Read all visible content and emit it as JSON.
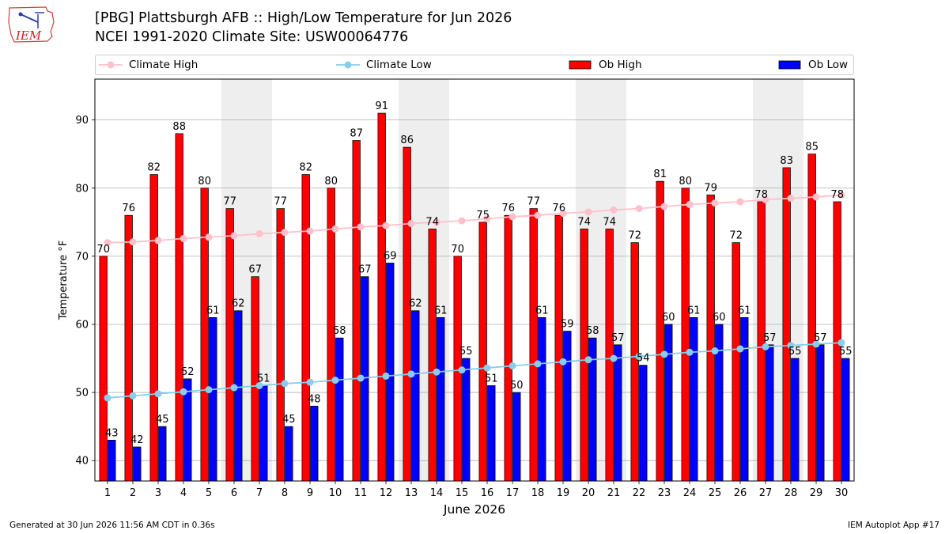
{
  "header": {
    "logo_text": "IEM",
    "title": "[PBG] Plattsburgh AFB :: High/Low Temperature for Jun 2026",
    "subtitle": "NCEI 1991-2020 Climate Site: USW00064776"
  },
  "footer": {
    "generated": "Generated at 30 Jun 2026 11:56 AM CDT in 0.36s",
    "app": "IEM Autoplot App #17"
  },
  "colors": {
    "climate_high": "#ffc0cb",
    "climate_low": "#87ceeb",
    "ob_high": "#ff0000",
    "ob_low": "#0000ff",
    "weekend_band": "#eeeeee"
  },
  "chart_data": {
    "type": "bar",
    "xlabel": "June 2026",
    "ylabel": "Temperature °F",
    "ylim": [
      37,
      96
    ],
    "yticks": [
      40,
      50,
      60,
      70,
      80,
      90
    ],
    "grid": "horizontal",
    "legend_placement": "top",
    "categories": [
      "1",
      "2",
      "3",
      "4",
      "5",
      "6",
      "7",
      "8",
      "9",
      "10",
      "11",
      "12",
      "13",
      "14",
      "15",
      "16",
      "17",
      "18",
      "19",
      "20",
      "21",
      "22",
      "23",
      "24",
      "25",
      "26",
      "27",
      "28",
      "29",
      "30"
    ],
    "shaded_days": [
      6,
      7,
      13,
      14,
      20,
      21,
      27,
      28
    ],
    "series": [
      {
        "name": "Climate High",
        "kind": "line",
        "values": [
          72.0,
          72.1,
          72.3,
          72.6,
          72.8,
          73.0,
          73.3,
          73.5,
          73.7,
          74.0,
          74.3,
          74.5,
          74.8,
          75.0,
          75.2,
          75.5,
          75.8,
          76.0,
          76.3,
          76.5,
          76.8,
          77.0,
          77.3,
          77.6,
          77.8,
          78.0,
          78.3,
          78.5,
          78.7,
          79.0
        ]
      },
      {
        "name": "Climate Low",
        "kind": "line",
        "values": [
          49.2,
          49.5,
          49.8,
          50.1,
          50.4,
          50.7,
          51.0,
          51.3,
          51.5,
          51.8,
          52.1,
          52.4,
          52.7,
          53.0,
          53.3,
          53.6,
          53.9,
          54.2,
          54.5,
          54.8,
          55.0,
          55.3,
          55.6,
          55.9,
          56.1,
          56.4,
          56.7,
          56.9,
          57.1,
          57.3
        ]
      },
      {
        "name": "Ob High",
        "kind": "bar",
        "values": [
          70,
          76,
          82,
          88,
          80,
          77,
          67,
          77,
          82,
          80,
          87,
          91,
          86,
          74,
          70,
          75,
          76,
          77,
          76,
          74,
          74,
          72,
          81,
          80,
          79,
          72,
          78,
          83,
          85,
          78
        ]
      },
      {
        "name": "Ob Low",
        "kind": "bar",
        "values": [
          43,
          42,
          45,
          52,
          61,
          62,
          51,
          45,
          48,
          58,
          67,
          69,
          62,
          61,
          55,
          51,
          50,
          61,
          59,
          58,
          57,
          54,
          60,
          61,
          60,
          61,
          57,
          55,
          57,
          55
        ]
      }
    ]
  }
}
